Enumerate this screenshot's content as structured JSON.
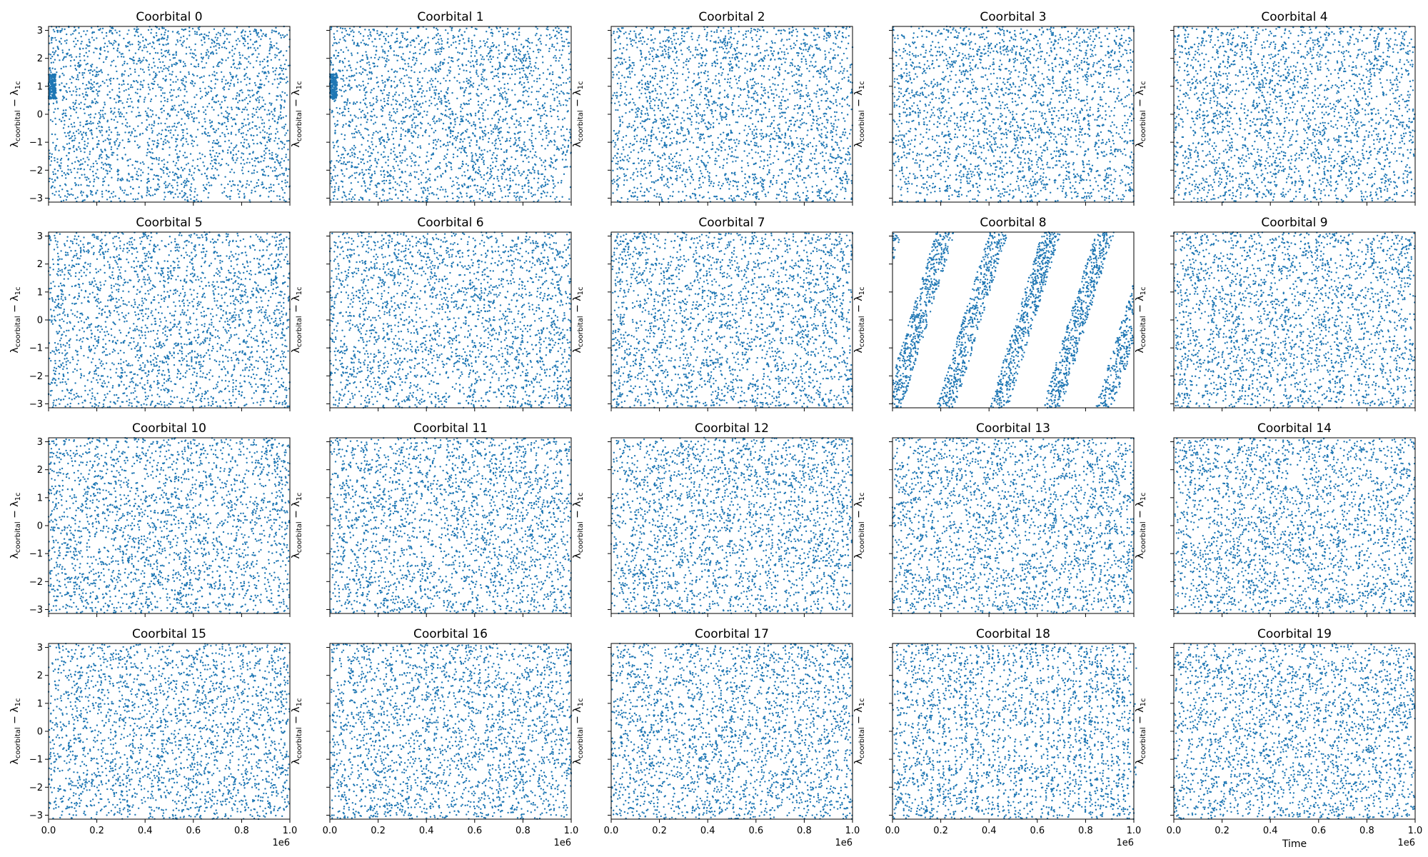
{
  "chart_data": {
    "type": "scatter",
    "layout": "4 rows x 5 columns of subplots, shared axes",
    "marker_color": "#1f77b4",
    "ylabel_text": "λ",
    "ylabel_sub1": "coorbital",
    "ylabel_mid": " − λ",
    "ylabel_sub2": "1c",
    "xlabel": "Time",
    "x_offset_text": "1e6",
    "xlim": [
      0,
      1000000
    ],
    "ylim": [
      -3.14159,
      3.14159
    ],
    "x_ticks": [
      0,
      200000,
      400000,
      600000,
      800000,
      1000000
    ],
    "x_tick_labels": [
      "0.0",
      "0.2",
      "0.4",
      "0.6",
      "0.8",
      "1.0"
    ],
    "y_ticks": [
      -3,
      -2,
      -1,
      0,
      1,
      2,
      3
    ],
    "y_tick_labels": [
      "−3",
      "−2",
      "−1",
      "0",
      "1",
      "2",
      "3"
    ],
    "grid": false,
    "legend": "none",
    "points_per_panel": 2500,
    "panels": [
      {
        "title": "Coorbital 0",
        "pattern": "uniform",
        "early_cluster": 1.0
      },
      {
        "title": "Coorbital 1",
        "pattern": "uniform",
        "early_cluster": 1.0
      },
      {
        "title": "Coorbital 2",
        "pattern": "uniform"
      },
      {
        "title": "Coorbital 3",
        "pattern": "uniform"
      },
      {
        "title": "Coorbital 4",
        "pattern": "uniform"
      },
      {
        "title": "Coorbital 5",
        "pattern": "uniform"
      },
      {
        "title": "Coorbital 6",
        "pattern": "uniform"
      },
      {
        "title": "Coorbital 7",
        "pattern": "uniform"
      },
      {
        "title": "Coorbital 8",
        "pattern": "circulating_bands",
        "band_period": 220000,
        "band_start": 0
      },
      {
        "title": "Coorbital 9",
        "pattern": "uniform"
      },
      {
        "title": "Coorbital 10",
        "pattern": "uniform"
      },
      {
        "title": "Coorbital 11",
        "pattern": "uniform"
      },
      {
        "title": "Coorbital 12",
        "pattern": "uniform"
      },
      {
        "title": "Coorbital 13",
        "pattern": "uniform"
      },
      {
        "title": "Coorbital 14",
        "pattern": "uniform"
      },
      {
        "title": "Coorbital 15",
        "pattern": "uniform"
      },
      {
        "title": "Coorbital 16",
        "pattern": "uniform"
      },
      {
        "title": "Coorbital 17",
        "pattern": "uniform"
      },
      {
        "title": "Coorbital 18",
        "pattern": "fast_circulation",
        "band_period": 45000,
        "band_start": 170000
      },
      {
        "title": "Coorbital 19",
        "pattern": "uniform"
      }
    ]
  }
}
